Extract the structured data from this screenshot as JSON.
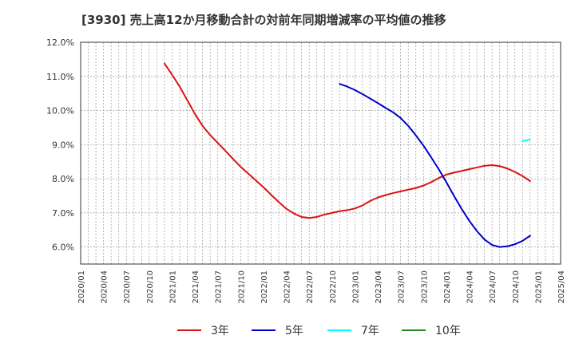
{
  "chart_data": {
    "type": "line",
    "title": "[3930]  売上高12か月移動合計の対前年同期増減率の平均値の推移",
    "xlabel": "",
    "ylabel": "",
    "ylim": [
      5.5,
      12.0
    ],
    "yticks": [
      6.0,
      7.0,
      8.0,
      9.0,
      10.0,
      11.0,
      12.0
    ],
    "ytick_labels": [
      "6.0%",
      "7.0%",
      "8.0%",
      "9.0%",
      "10.0%",
      "11.0%",
      "12.0%"
    ],
    "xlim": [
      "2020-01",
      "2025-04"
    ],
    "xtick_labels": [
      "2020/01",
      "2020/04",
      "2020/07",
      "2020/10",
      "2021/01",
      "2021/04",
      "2021/07",
      "2021/10",
      "2022/01",
      "2022/04",
      "2022/07",
      "2022/10",
      "2023/01",
      "2023/04",
      "2023/07",
      "2023/10",
      "2024/01",
      "2024/04",
      "2024/07",
      "2024/10",
      "2025/01",
      "2025/04"
    ],
    "grid": true,
    "legend_position": "bottom",
    "series": [
      {
        "name": "3年",
        "color": "#dd1111",
        "points": [
          [
            "2020-12",
            11.38
          ],
          [
            "2021-01",
            11.05
          ],
          [
            "2021-02",
            10.7
          ],
          [
            "2021-03",
            10.3
          ],
          [
            "2021-04",
            9.9
          ],
          [
            "2021-05",
            9.55
          ],
          [
            "2021-06",
            9.28
          ],
          [
            "2021-07",
            9.05
          ],
          [
            "2021-08",
            8.82
          ],
          [
            "2021-09",
            8.58
          ],
          [
            "2021-10",
            8.35
          ],
          [
            "2021-11",
            8.15
          ],
          [
            "2021-12",
            7.95
          ],
          [
            "2022-01",
            7.75
          ],
          [
            "2022-02",
            7.53
          ],
          [
            "2022-03",
            7.32
          ],
          [
            "2022-04",
            7.12
          ],
          [
            "2022-05",
            6.98
          ],
          [
            "2022-06",
            6.88
          ],
          [
            "2022-07",
            6.85
          ],
          [
            "2022-08",
            6.88
          ],
          [
            "2022-09",
            6.95
          ],
          [
            "2022-10",
            7.0
          ],
          [
            "2022-11",
            7.05
          ],
          [
            "2022-12",
            7.08
          ],
          [
            "2023-01",
            7.13
          ],
          [
            "2023-02",
            7.22
          ],
          [
            "2023-03",
            7.35
          ],
          [
            "2023-04",
            7.45
          ],
          [
            "2023-05",
            7.52
          ],
          [
            "2023-06",
            7.58
          ],
          [
            "2023-07",
            7.63
          ],
          [
            "2023-08",
            7.68
          ],
          [
            "2023-09",
            7.73
          ],
          [
            "2023-10",
            7.8
          ],
          [
            "2023-11",
            7.9
          ],
          [
            "2023-12",
            8.02
          ],
          [
            "2024-01",
            8.12
          ],
          [
            "2024-02",
            8.18
          ],
          [
            "2024-03",
            8.23
          ],
          [
            "2024-04",
            8.28
          ],
          [
            "2024-05",
            8.33
          ],
          [
            "2024-06",
            8.38
          ],
          [
            "2024-07",
            8.4
          ],
          [
            "2024-08",
            8.37
          ],
          [
            "2024-09",
            8.3
          ],
          [
            "2024-10",
            8.2
          ],
          [
            "2024-11",
            8.08
          ],
          [
            "2024-12",
            7.93
          ]
        ]
      },
      {
        "name": "5年",
        "color": "#0000cc",
        "points": [
          [
            "2022-11",
            10.78
          ],
          [
            "2022-12",
            10.7
          ],
          [
            "2023-01",
            10.6
          ],
          [
            "2023-02",
            10.48
          ],
          [
            "2023-03",
            10.35
          ],
          [
            "2023-04",
            10.22
          ],
          [
            "2023-05",
            10.08
          ],
          [
            "2023-06",
            9.95
          ],
          [
            "2023-07",
            9.78
          ],
          [
            "2023-08",
            9.55
          ],
          [
            "2023-09",
            9.27
          ],
          [
            "2023-10",
            8.97
          ],
          [
            "2023-11",
            8.63
          ],
          [
            "2023-12",
            8.28
          ],
          [
            "2024-01",
            7.9
          ],
          [
            "2024-02",
            7.5
          ],
          [
            "2024-03",
            7.12
          ],
          [
            "2024-04",
            6.77
          ],
          [
            "2024-05",
            6.47
          ],
          [
            "2024-06",
            6.22
          ],
          [
            "2024-07",
            6.06
          ],
          [
            "2024-08",
            6.0
          ],
          [
            "2024-09",
            6.02
          ],
          [
            "2024-10",
            6.08
          ],
          [
            "2024-11",
            6.18
          ],
          [
            "2024-12",
            6.33
          ]
        ]
      },
      {
        "name": "7年",
        "color": "#00ffff",
        "points": [
          [
            "2024-11",
            9.1
          ],
          [
            "2024-12",
            9.15
          ]
        ]
      },
      {
        "name": "10年",
        "color": "#228b22",
        "points": []
      }
    ]
  }
}
